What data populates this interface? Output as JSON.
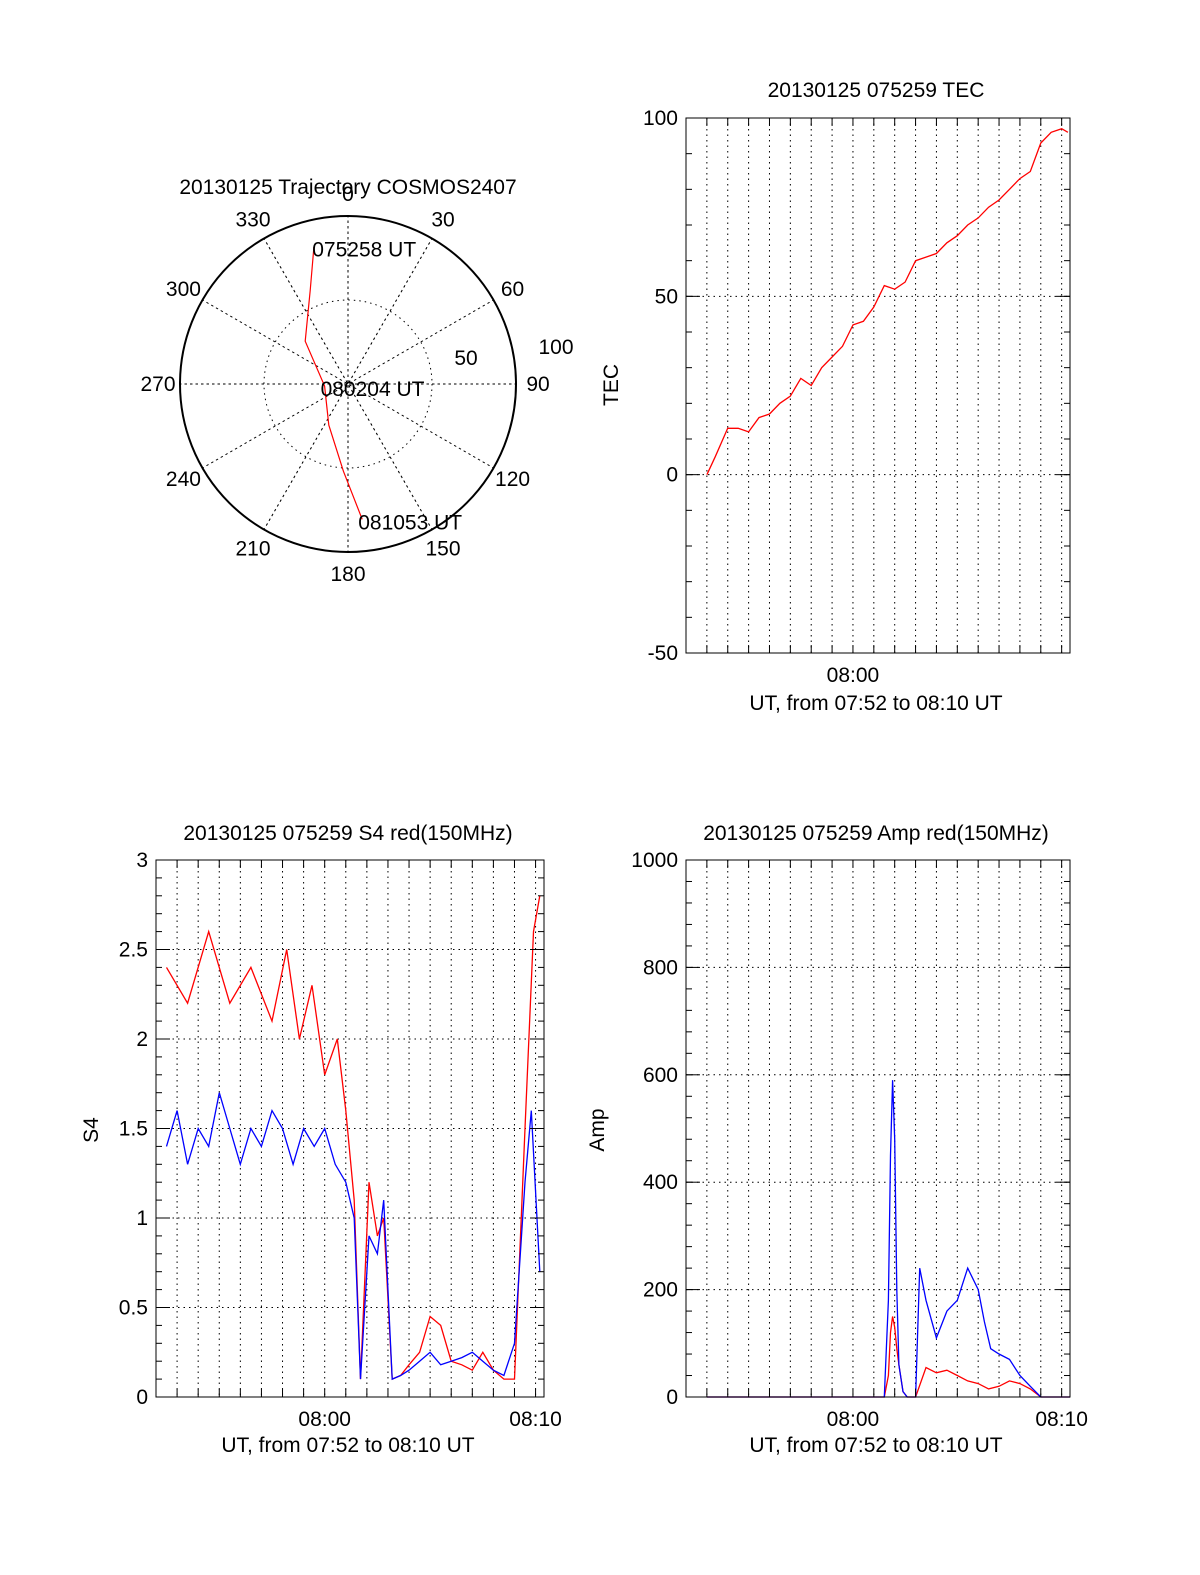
{
  "colors": {
    "red": "#ff0000",
    "blue": "#0000ff",
    "axis": "#000000"
  },
  "chart_data": [
    {
      "type": "polar",
      "title": "20130125 Trajectory COSMOS2407",
      "azimuth_labels": [
        "0",
        "30",
        "60",
        "90",
        "120",
        "150",
        "180",
        "210",
        "240",
        "270",
        "300",
        "330"
      ],
      "radial_labels": [
        "50",
        "100"
      ],
      "rlim": [
        0,
        100
      ],
      "series": [
        {
          "name": "trajectory",
          "color": "red",
          "points": [
            {
              "az": 346,
              "r": 84
            },
            {
              "az": 338,
              "r": 60
            },
            {
              "az": 315,
              "r": 36
            },
            {
              "az": 265,
              "r": 14
            },
            {
              "az": 205,
              "r": 27
            },
            {
              "az": 183,
              "r": 52
            },
            {
              "az": 174,
              "r": 81
            }
          ]
        }
      ],
      "annotations": [
        {
          "text": "075258 UT",
          "az": 347,
          "r": 84
        },
        {
          "text": "080204 UT",
          "az": 265,
          "r": 14
        },
        {
          "text": "081053 UT",
          "az": 174,
          "r": 81
        }
      ]
    },
    {
      "type": "line",
      "title": "20130125 075259 TEC",
      "xlabel": "UT, from 07:52 to 08:10 UT",
      "ylabel": "TEC",
      "xlim": [
        -8.0,
        10.4
      ],
      "ylim": [
        -50,
        100
      ],
      "yticks": [
        "100",
        "50",
        "0",
        "-50"
      ],
      "xticks": [
        {
          "v": 0,
          "label": "08:00"
        }
      ],
      "series": [
        {
          "name": "TEC",
          "color": "red",
          "x": [
            -7.0,
            -6.6,
            -6.0,
            -5.5,
            -5.0,
            -4.5,
            -4.0,
            -3.5,
            -3.0,
            -2.5,
            -2.0,
            -1.5,
            -1.0,
            -0.5,
            0.0,
            0.5,
            1.0,
            1.5,
            2.0,
            2.5,
            3.0,
            3.5,
            4.0,
            4.5,
            5.0,
            5.5,
            6.0,
            6.5,
            7.0,
            7.5,
            8.0,
            8.5,
            9.0,
            9.5,
            10.0,
            10.3
          ],
          "y": [
            0,
            5,
            13,
            13,
            12,
            16,
            17,
            20,
            22,
            27,
            25,
            30,
            33,
            36,
            42,
            43,
            47,
            53,
            52,
            54,
            60,
            61,
            62,
            65,
            67,
            70,
            72,
            75,
            77,
            80,
            83,
            85,
            93,
            96,
            97,
            96
          ]
        }
      ]
    },
    {
      "type": "line",
      "title": "20130125 075259 S4 red(150MHz)",
      "xlabel": "UT, from 07:52 to 08:10 UT",
      "ylabel": "S4",
      "xlim": [
        -8.0,
        10.4
      ],
      "ylim": [
        0,
        3
      ],
      "yticks": [
        "3",
        "2.5",
        "2",
        "1.5",
        "1",
        "0.5",
        "0"
      ],
      "xticks": [
        {
          "v": 0,
          "label": "08:00"
        },
        {
          "v": 10,
          "label": "08:10"
        }
      ],
      "series": [
        {
          "name": "S4 red",
          "color": "red",
          "x": [
            -7.5,
            -6.5,
            -5.5,
            -4.5,
            -3.5,
            -2.5,
            -1.8,
            -1.2,
            -0.6,
            0.0,
            0.6,
            1.0,
            1.4,
            1.7,
            2.1,
            2.5,
            2.8,
            3.2,
            3.6,
            4.0,
            4.5,
            5.0,
            5.5,
            6.0,
            6.5,
            7.0,
            7.5,
            8.0,
            8.5,
            9.0,
            9.5,
            9.9,
            10.2
          ],
          "y": [
            2.4,
            2.2,
            2.6,
            2.2,
            2.4,
            2.1,
            2.5,
            2.0,
            2.3,
            1.8,
            2.0,
            1.6,
            1.1,
            0.1,
            1.2,
            0.9,
            1.0,
            0.1,
            0.12,
            0.18,
            0.25,
            0.45,
            0.4,
            0.2,
            0.18,
            0.15,
            0.25,
            0.15,
            0.1,
            0.1,
            1.5,
            2.6,
            2.8
          ]
        },
        {
          "name": "S4 blue",
          "color": "blue",
          "x": [
            -7.5,
            -7.0,
            -6.5,
            -6.0,
            -5.5,
            -5.0,
            -4.5,
            -4.0,
            -3.5,
            -3.0,
            -2.5,
            -2.0,
            -1.5,
            -1.0,
            -0.5,
            0.0,
            0.5,
            1.0,
            1.4,
            1.7,
            2.1,
            2.5,
            2.8,
            3.2,
            3.6,
            4.0,
            4.5,
            5.0,
            5.5,
            6.0,
            6.5,
            7.0,
            7.5,
            8.0,
            8.5,
            9.0,
            9.5,
            9.8,
            10.2
          ],
          "y": [
            1.4,
            1.6,
            1.3,
            1.5,
            1.4,
            1.7,
            1.5,
            1.3,
            1.5,
            1.4,
            1.6,
            1.5,
            1.3,
            1.5,
            1.4,
            1.5,
            1.3,
            1.2,
            1.0,
            0.1,
            0.9,
            0.8,
            1.1,
            0.1,
            0.12,
            0.15,
            0.2,
            0.25,
            0.18,
            0.2,
            0.22,
            0.25,
            0.2,
            0.15,
            0.12,
            0.3,
            1.2,
            1.6,
            0.7
          ]
        }
      ]
    },
    {
      "type": "line",
      "title": "20130125 075259 Amp red(150MHz)",
      "xlabel": "UT, from 07:52 to 08:10 UT",
      "ylabel": "Amp",
      "xlim": [
        -8.0,
        10.4
      ],
      "ylim": [
        0,
        1000
      ],
      "yticks": [
        "1000",
        "800",
        "600",
        "400",
        "200",
        "0"
      ],
      "xticks": [
        {
          "v": 0,
          "label": "08:00"
        },
        {
          "v": 10,
          "label": "08:10"
        }
      ],
      "series": [
        {
          "name": "Amp red",
          "color": "red",
          "x": [
            -7.0,
            1.5,
            1.7,
            1.8,
            1.9,
            2.0,
            2.1,
            2.2,
            2.4,
            2.6,
            2.8,
            3.0,
            3.5,
            4.0,
            4.5,
            5.0,
            5.5,
            6.0,
            6.5,
            7.0,
            7.5,
            8.0,
            8.5,
            9.0,
            10.4
          ],
          "y": [
            0,
            0,
            40,
            120,
            150,
            130,
            90,
            60,
            10,
            0,
            0,
            0,
            55,
            45,
            50,
            40,
            30,
            25,
            15,
            20,
            30,
            25,
            15,
            0,
            0
          ]
        },
        {
          "name": "Amp blue",
          "color": "blue",
          "x": [
            -7.0,
            1.5,
            1.7,
            1.8,
            1.9,
            2.0,
            2.1,
            2.2,
            2.4,
            2.6,
            2.8,
            3.0,
            3.2,
            3.5,
            4.0,
            4.5,
            5.0,
            5.5,
            6.0,
            6.3,
            6.6,
            7.0,
            7.5,
            8.0,
            8.5,
            9.0,
            10.4
          ],
          "y": [
            0,
            0,
            180,
            450,
            590,
            480,
            200,
            60,
            10,
            0,
            0,
            0,
            240,
            180,
            110,
            160,
            180,
            240,
            200,
            140,
            90,
            80,
            70,
            40,
            20,
            0,
            0
          ]
        }
      ]
    }
  ]
}
